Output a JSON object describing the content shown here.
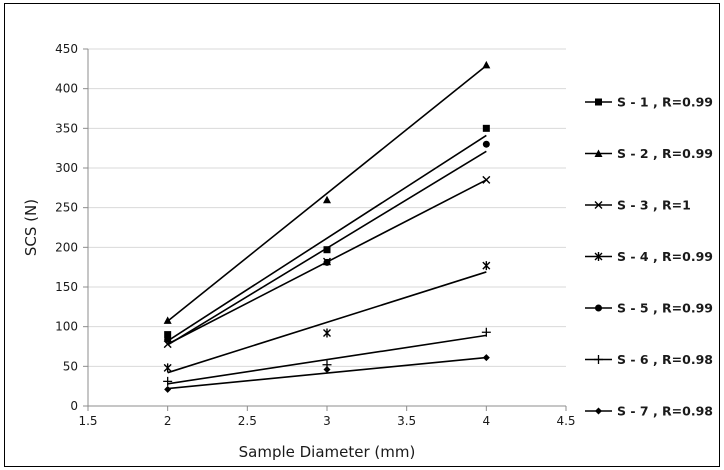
{
  "chart_data": {
    "type": "scatter",
    "title": "",
    "xlabel": "Sample Diameter (mm)",
    "ylabel": "SCS (N)",
    "xlim": [
      1.5,
      4.5
    ],
    "ylim": [
      0,
      450
    ],
    "xticks": [
      "1.5",
      "2",
      "2.5",
      "3",
      "3.5",
      "4",
      "4.5"
    ],
    "yticks": [
      "0",
      "50",
      "100",
      "150",
      "200",
      "250",
      "300",
      "350",
      "400",
      "450"
    ],
    "xtick_values": [
      1.5,
      2,
      2.5,
      3,
      3.5,
      4,
      4.5
    ],
    "ytick_values": [
      0,
      50,
      100,
      150,
      200,
      250,
      300,
      350,
      400,
      450
    ],
    "grid": "horizontal",
    "legend_position": "right",
    "line_color": "#000000",
    "series": [
      {
        "name": "S - 1 , R=0.99",
        "marker": "square",
        "x": [
          2,
          3,
          4
        ],
        "y": [
          90,
          197,
          350
        ],
        "trend": [
          [
            2,
            82
          ],
          [
            4,
            341
          ]
        ]
      },
      {
        "name": "S - 2 , R=0.99",
        "marker": "triangle",
        "x": [
          2,
          3,
          4
        ],
        "y": [
          108,
          260,
          430
        ],
        "trend": [
          [
            2,
            107
          ],
          [
            4,
            429
          ]
        ]
      },
      {
        "name": "S - 3 , R=1",
        "marker": "x",
        "x": [
          2,
          3,
          4
        ],
        "y": [
          78,
          182,
          285
        ],
        "trend": [
          [
            2,
            78
          ],
          [
            4,
            285
          ]
        ]
      },
      {
        "name": "S - 4 , R=0.99",
        "marker": "star",
        "x": [
          2,
          3,
          4
        ],
        "y": [
          48,
          92,
          177
        ],
        "trend": [
          [
            2,
            42
          ],
          [
            4,
            169
          ]
        ]
      },
      {
        "name": "S - 5 , R=0.99",
        "marker": "circle",
        "x": [
          2,
          3,
          4
        ],
        "y": [
          84,
          181,
          330
        ],
        "trend": [
          [
            2,
            77
          ],
          [
            4,
            321
          ]
        ]
      },
      {
        "name": "S - 6 , R=0.98",
        "marker": "plus",
        "x": [
          2,
          3,
          4
        ],
        "y": [
          31,
          52,
          93
        ],
        "trend": [
          [
            2,
            28
          ],
          [
            4,
            89
          ]
        ]
      },
      {
        "name": "S - 7 , R=0.98",
        "marker": "diamond",
        "x": [
          2,
          3,
          4
        ],
        "y": [
          21,
          46,
          61
        ],
        "trend": [
          [
            2,
            22
          ],
          [
            4,
            61
          ]
        ]
      }
    ]
  }
}
